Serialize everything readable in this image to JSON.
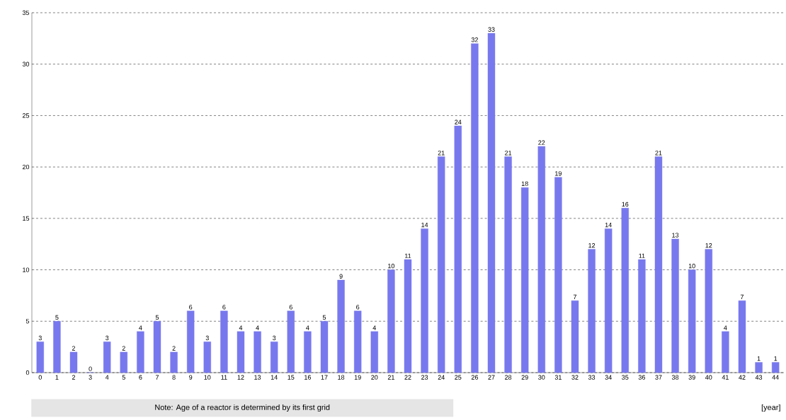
{
  "chart_data": {
    "type": "bar",
    "categories": [
      "0",
      "1",
      "2",
      "3",
      "4",
      "5",
      "6",
      "7",
      "8",
      "9",
      "10",
      "11",
      "12",
      "13",
      "14",
      "15",
      "16",
      "17",
      "18",
      "19",
      "20",
      "21",
      "22",
      "23",
      "24",
      "25",
      "26",
      "27",
      "28",
      "29",
      "30",
      "31",
      "32",
      "33",
      "34",
      "35",
      "36",
      "37",
      "38",
      "39",
      "40",
      "41",
      "42",
      "43",
      "44"
    ],
    "values": [
      3,
      5,
      2,
      0,
      3,
      2,
      4,
      5,
      2,
      6,
      3,
      6,
      4,
      4,
      3,
      6,
      4,
      5,
      9,
      6,
      4,
      10,
      11,
      14,
      21,
      24,
      32,
      33,
      21,
      18,
      22,
      19,
      7,
      12,
      14,
      16,
      11,
      21,
      13,
      10,
      12,
      4,
      7,
      1,
      1
    ],
    "color": "#7878ee",
    "ylim": [
      0,
      35
    ],
    "yticks": [
      0,
      5,
      10,
      15,
      20,
      25,
      30,
      35
    ],
    "grid": "y",
    "data_labels": true,
    "xlabel": "[year]",
    "annotations": [
      "Note: Age of a reactor is determined by its first grid"
    ]
  }
}
